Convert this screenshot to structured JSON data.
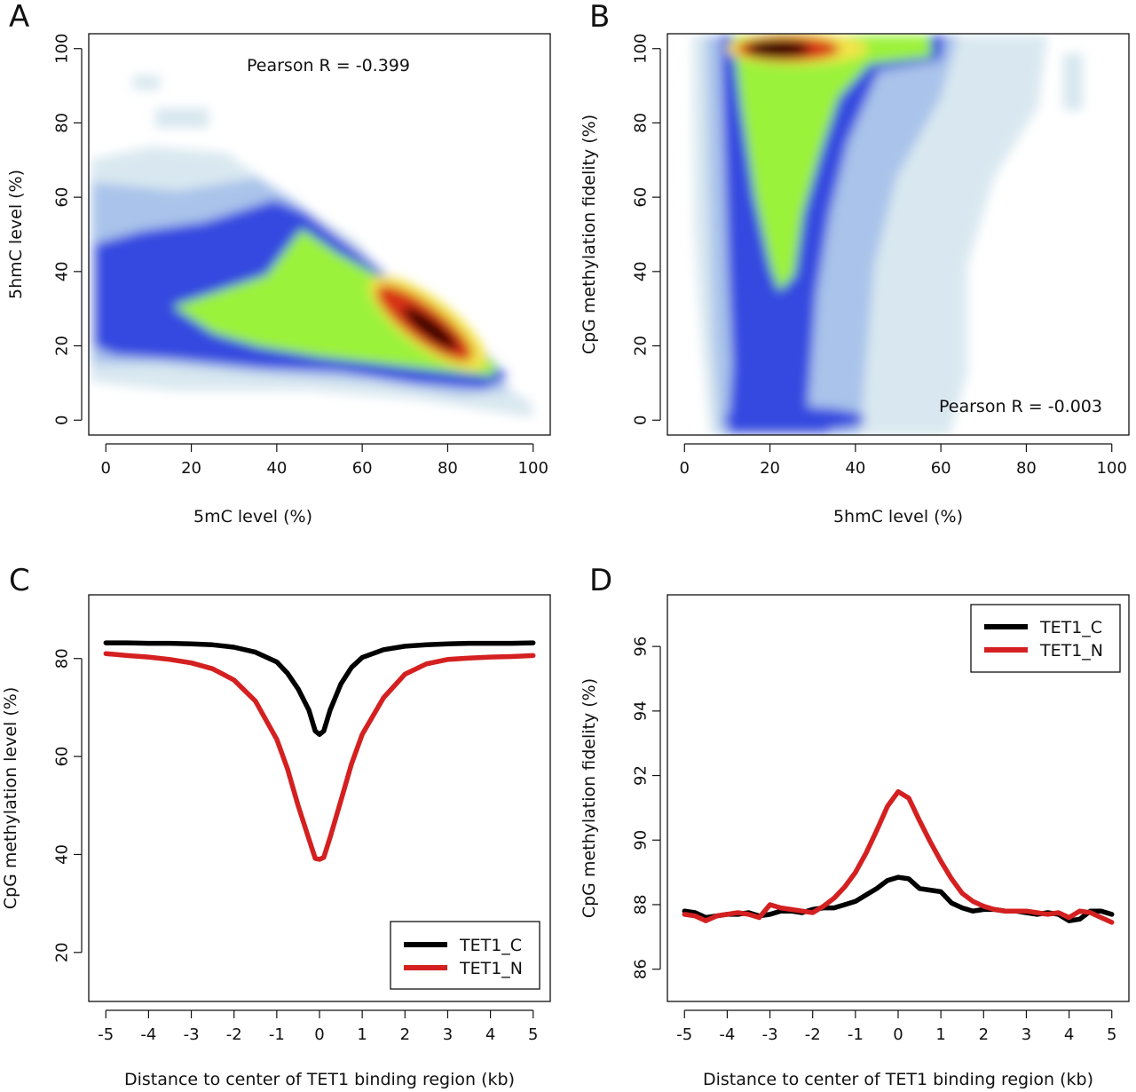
{
  "chart_data": [
    {
      "panel": "A",
      "type": "heatmap",
      "title": "",
      "xlabel": "5mC level (%)",
      "ylabel": "5hmC level (%)",
      "xlim": [
        -4,
        104
      ],
      "ylim": [
        -4,
        104
      ],
      "xticks": [
        0,
        20,
        40,
        60,
        80,
        100
      ],
      "yticks": [
        0,
        20,
        40,
        60,
        80,
        100
      ],
      "annotation": "Pearson R =  -0.399",
      "density_ridge": {
        "x": [
          10,
          30,
          50,
          60,
          70,
          80,
          90
        ],
        "y": [
          30,
          40,
          45,
          38,
          30,
          20,
          12
        ]
      },
      "density_peak": {
        "x": 76,
        "y": 24
      }
    },
    {
      "panel": "B",
      "type": "heatmap",
      "title": "",
      "xlabel": "5hmC level (%)",
      "ylabel": "CpG methylation fidelity (%)",
      "xlim": [
        -4,
        104
      ],
      "ylim": [
        -4,
        104
      ],
      "xticks": [
        0,
        20,
        40,
        60,
        80,
        100
      ],
      "yticks": [
        0,
        20,
        40,
        60,
        80,
        100
      ],
      "annotation": "Pearson R =  -0.003",
      "density_peak": {
        "x": 24,
        "y": 100
      },
      "secondary_peak": {
        "x": 25,
        "y": 0
      }
    },
    {
      "panel": "C",
      "type": "line",
      "title": "",
      "xlabel": "Distance to center of TET1 binding region (kb)",
      "ylabel": "CpG methylation level (%)",
      "xlim": [
        -5.4,
        5.4
      ],
      "ylim": [
        10,
        93
      ],
      "xticks": [
        "-5",
        "-4",
        "-3",
        "-2",
        "-1",
        "0",
        "1",
        "2",
        "3",
        "4",
        "5"
      ],
      "yticks": [
        "20",
        "40",
        "60",
        "80"
      ],
      "x": [
        -5,
        -4.5,
        -4,
        -3.5,
        -3,
        -2.5,
        -2,
        -1.5,
        -1,
        -0.75,
        -0.5,
        -0.25,
        -0.1,
        0,
        0.1,
        0.25,
        0.5,
        0.75,
        1,
        1.5,
        2,
        2.5,
        3,
        3.5,
        4,
        4.5,
        5
      ],
      "series": [
        {
          "name": "TET1_C",
          "color": "#000000",
          "values": [
            83.2,
            83.2,
            83.1,
            83.1,
            83.0,
            82.8,
            82.3,
            81.3,
            79.3,
            77.0,
            73.8,
            69.5,
            65.2,
            64.5,
            65.2,
            69.5,
            74.8,
            78.2,
            80.2,
            81.8,
            82.5,
            82.8,
            83.0,
            83.1,
            83.1,
            83.1,
            83.2
          ]
        },
        {
          "name": "TET1_N",
          "color": "#d42020",
          "values": [
            81.0,
            80.6,
            80.3,
            79.8,
            79.1,
            77.9,
            75.6,
            71.3,
            63.5,
            57.5,
            50.0,
            43.2,
            39.2,
            39.0,
            39.4,
            43.5,
            51.0,
            58.5,
            64.5,
            72.0,
            76.8,
            78.9,
            79.8,
            80.1,
            80.3,
            80.4,
            80.6
          ]
        }
      ],
      "legend": {
        "position": "bottom-right",
        "entries": [
          "TET1_C",
          "TET1_N"
        ]
      }
    },
    {
      "panel": "D",
      "type": "line",
      "title": "",
      "xlabel": "Distance to center of TET1 binding region (kb)",
      "ylabel": "CpG methylation fidelity (%)",
      "xlim": [
        -5.4,
        5.4
      ],
      "ylim": [
        85.0,
        97.6
      ],
      "xticks": [
        "-5",
        "-4",
        "-3",
        "-2",
        "-1",
        "0",
        "1",
        "2",
        "3",
        "4",
        "5"
      ],
      "yticks": [
        "86",
        "88",
        "90",
        "92",
        "94",
        "96"
      ],
      "x": [
        -5,
        -4.75,
        -4.5,
        -4.25,
        -4,
        -3.75,
        -3.5,
        -3.25,
        -3,
        -2.75,
        -2.5,
        -2.25,
        -2,
        -1.75,
        -1.5,
        -1.25,
        -1,
        -0.75,
        -0.5,
        -0.25,
        0,
        0.25,
        0.5,
        0.75,
        1,
        1.25,
        1.5,
        1.75,
        2,
        2.25,
        2.5,
        2.75,
        3,
        3.25,
        3.5,
        3.75,
        4,
        4.25,
        4.5,
        4.75,
        5
      ],
      "series": [
        {
          "name": "TET1_C",
          "color": "#000000",
          "values": [
            87.8,
            87.75,
            87.6,
            87.65,
            87.7,
            87.7,
            87.75,
            87.65,
            87.7,
            87.8,
            87.8,
            87.75,
            87.85,
            87.9,
            87.9,
            88.0,
            88.1,
            88.3,
            88.5,
            88.75,
            88.85,
            88.8,
            88.5,
            88.45,
            88.4,
            88.05,
            87.9,
            87.8,
            87.85,
            87.85,
            87.8,
            87.8,
            87.75,
            87.7,
            87.75,
            87.7,
            87.5,
            87.55,
            87.8,
            87.8,
            87.7
          ]
        },
        {
          "name": "TET1_N",
          "color": "#d42020",
          "values": [
            87.7,
            87.65,
            87.5,
            87.65,
            87.7,
            87.75,
            87.7,
            87.6,
            88.0,
            87.9,
            87.85,
            87.8,
            87.75,
            87.95,
            88.2,
            88.55,
            89.0,
            89.6,
            90.3,
            91.05,
            91.5,
            91.3,
            90.6,
            89.95,
            89.35,
            88.8,
            88.35,
            88.1,
            87.95,
            87.85,
            87.8,
            87.8,
            87.8,
            87.75,
            87.7,
            87.75,
            87.6,
            87.8,
            87.75,
            87.6,
            87.45
          ]
        }
      ],
      "legend": {
        "position": "top-right",
        "entries": [
          "TET1_C",
          "TET1_N"
        ]
      }
    }
  ]
}
